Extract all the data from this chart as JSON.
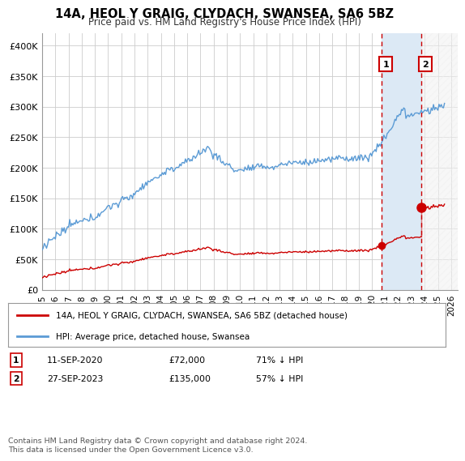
{
  "title": "14A, HEOL Y GRAIG, CLYDACH, SWANSEA, SA6 5BZ",
  "subtitle": "Price paid vs. HM Land Registry's House Price Index (HPI)",
  "ylabel_ticks": [
    "£0",
    "£50K",
    "£100K",
    "£150K",
    "£200K",
    "£250K",
    "£300K",
    "£350K",
    "£400K"
  ],
  "ytick_values": [
    0,
    50000,
    100000,
    150000,
    200000,
    250000,
    300000,
    350000,
    400000
  ],
  "ylim": [
    0,
    420000
  ],
  "xlim_start": 1995.0,
  "xlim_end": 2026.5,
  "hpi_color": "#5b9bd5",
  "price_color": "#cc0000",
  "dashed_color": "#cc0000",
  "shade_color": "#dce9f5",
  "marker1_date": 2020.75,
  "marker1_price": 72000,
  "marker2_date": 2023.75,
  "marker2_price": 135000,
  "marker1_label": "11-SEP-2020",
  "marker1_value": "£72,000",
  "marker1_pct": "71% ↓ HPI",
  "marker2_label": "27-SEP-2023",
  "marker2_value": "£135,000",
  "marker2_pct": "57% ↓ HPI",
  "legend_line1": "14A, HEOL Y GRAIG, CLYDACH, SWANSEA, SA6 5BZ (detached house)",
  "legend_line2": "HPI: Average price, detached house, Swansea",
  "footnote": "Contains HM Land Registry data © Crown copyright and database right 2024.\nThis data is licensed under the Open Government Licence v3.0.",
  "xtick_years": [
    1995,
    1996,
    1997,
    1998,
    1999,
    2000,
    2001,
    2002,
    2003,
    2004,
    2005,
    2006,
    2007,
    2008,
    2009,
    2010,
    2011,
    2012,
    2013,
    2014,
    2015,
    2016,
    2017,
    2018,
    2019,
    2020,
    2021,
    2022,
    2023,
    2024,
    2025,
    2026
  ],
  "background_color": "#ffffff",
  "grid_color": "#cccccc"
}
